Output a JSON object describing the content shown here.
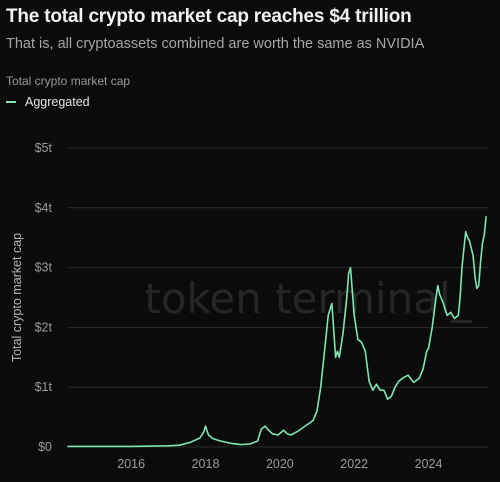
{
  "header": {
    "title": "The total crypto market cap reaches $4 trillion",
    "subtitle": "That is, all cryptoassets combined are worth the same as NVIDIA",
    "panel_label": "Total crypto market cap"
  },
  "watermark": "token terminal_",
  "colors": {
    "background": "#0b0b0b",
    "series": "#7fe6b0",
    "grid": "#2a2a2a",
    "axis_text": "#9a9a9a",
    "watermark": "#262626"
  },
  "chart_data": {
    "type": "line",
    "title": "The total crypto market cap reaches $4 trillion",
    "subtitle": "That is, all cryptoassets combined are worth the same as NVIDIA",
    "xlabel": "",
    "ylabel": "Total crypto market cap",
    "ylim": [
      0,
      5
    ],
    "y_unit": "trillion USD",
    "yticks": [
      0,
      1,
      2,
      3,
      4,
      5
    ],
    "ytick_labels": [
      "$0",
      "$1t",
      "$2t",
      "$3t",
      "$4t",
      "$5t"
    ],
    "xlim": [
      2014.3,
      2025.6
    ],
    "xticks": [
      2016,
      2018,
      2020,
      2022,
      2024
    ],
    "xtick_labels": [
      "2016",
      "2018",
      "2020",
      "2022",
      "2024"
    ],
    "grid": "horizontal",
    "legend": "top-left",
    "series": [
      {
        "name": "Aggregated",
        "x": [
          2014.3,
          2015.0,
          2016.0,
          2017.0,
          2017.3,
          2017.6,
          2017.85,
          2017.95,
          2018.0,
          2018.08,
          2018.2,
          2018.4,
          2018.7,
          2018.95,
          2019.2,
          2019.4,
          2019.5,
          2019.6,
          2019.7,
          2019.8,
          2019.95,
          2020.1,
          2020.2,
          2020.3,
          2020.5,
          2020.7,
          2020.8,
          2020.9,
          2021.0,
          2021.1,
          2021.2,
          2021.3,
          2021.4,
          2021.5,
          2021.55,
          2021.6,
          2021.7,
          2021.8,
          2021.85,
          2021.9,
          2022.0,
          2022.1,
          2022.2,
          2022.3,
          2022.4,
          2022.5,
          2022.6,
          2022.7,
          2022.8,
          2022.9,
          2023.0,
          2023.1,
          2023.2,
          2023.3,
          2023.45,
          2023.6,
          2023.75,
          2023.85,
          2023.95,
          2024.0,
          2024.1,
          2024.2,
          2024.25,
          2024.3,
          2024.4,
          2024.5,
          2024.6,
          2024.7,
          2024.8,
          2024.85,
          2024.9,
          2024.95,
          2025.0,
          2025.05,
          2025.1,
          2025.2,
          2025.25,
          2025.3,
          2025.35,
          2025.4,
          2025.45,
          2025.5,
          2025.55
        ],
        "values": [
          0.01,
          0.01,
          0.01,
          0.02,
          0.03,
          0.08,
          0.15,
          0.25,
          0.35,
          0.2,
          0.14,
          0.1,
          0.06,
          0.04,
          0.05,
          0.1,
          0.3,
          0.35,
          0.28,
          0.22,
          0.2,
          0.28,
          0.22,
          0.2,
          0.27,
          0.36,
          0.4,
          0.45,
          0.6,
          1.0,
          1.6,
          2.2,
          2.4,
          1.5,
          1.6,
          1.5,
          1.9,
          2.5,
          2.9,
          3.0,
          2.2,
          1.8,
          1.75,
          1.6,
          1.1,
          0.95,
          1.05,
          0.95,
          0.95,
          0.8,
          0.85,
          1.0,
          1.1,
          1.15,
          1.2,
          1.08,
          1.15,
          1.3,
          1.6,
          1.65,
          2.0,
          2.5,
          2.7,
          2.55,
          2.4,
          2.2,
          2.25,
          2.15,
          2.2,
          2.5,
          3.0,
          3.3,
          3.6,
          3.5,
          3.45,
          3.2,
          2.85,
          2.65,
          2.7,
          3.1,
          3.4,
          3.55,
          3.85
        ]
      }
    ]
  },
  "legend": {
    "label": "Aggregated"
  }
}
